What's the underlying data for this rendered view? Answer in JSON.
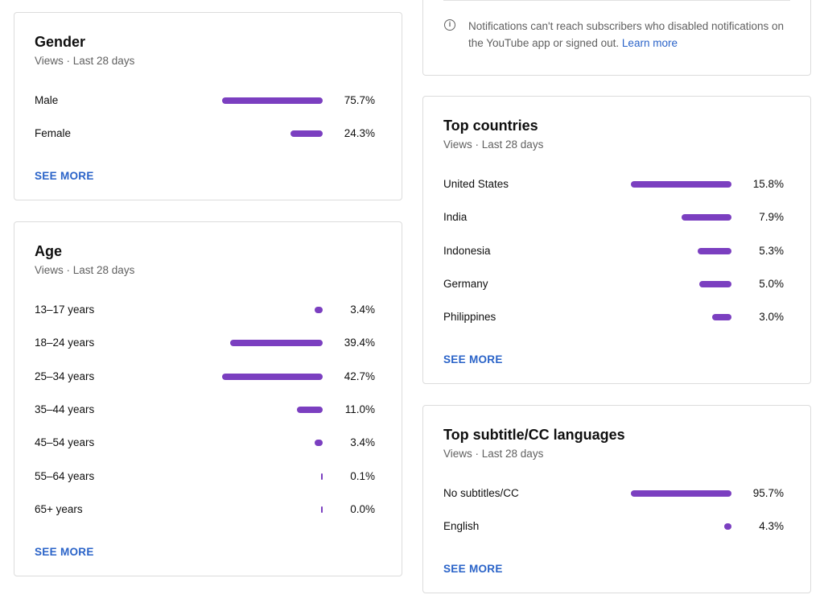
{
  "gender": {
    "title": "Gender",
    "subtitle": "Views · Last 28 days",
    "rows": [
      {
        "label": "Male",
        "value": "75.7%",
        "bar_fraction": 0.757
      },
      {
        "label": "Female",
        "value": "24.3%",
        "bar_fraction": 0.243
      }
    ],
    "see_more": "SEE MORE"
  },
  "age": {
    "title": "Age",
    "subtitle": "Views · Last 28 days",
    "rows": [
      {
        "label": "13–17 years",
        "value": "3.4%",
        "bar_fraction": 0.034
      },
      {
        "label": "18–24 years",
        "value": "39.4%",
        "bar_fraction": 0.394
      },
      {
        "label": "25–34 years",
        "value": "42.7%",
        "bar_fraction": 0.427
      },
      {
        "label": "35–44 years",
        "value": "11.0%",
        "bar_fraction": 0.11
      },
      {
        "label": "45–54 years",
        "value": "3.4%",
        "bar_fraction": 0.034
      },
      {
        "label": "55–64 years",
        "value": "0.1%",
        "bar_fraction": 0.001
      },
      {
        "label": "65+ years",
        "value": "0.0%",
        "bar_fraction": 0.0
      }
    ],
    "see_more": "SEE MORE"
  },
  "notice": {
    "icon": "info-icon",
    "text": "Notifications can't reach subscribers who disabled notifications on the YouTube app or signed out.",
    "link": "Learn more"
  },
  "countries": {
    "title": "Top countries",
    "subtitle": "Views · Last 28 days",
    "rows": [
      {
        "label": "United States",
        "value": "15.8%",
        "bar_fraction": 0.158
      },
      {
        "label": "India",
        "value": "7.9%",
        "bar_fraction": 0.079
      },
      {
        "label": "Indonesia",
        "value": "5.3%",
        "bar_fraction": 0.053
      },
      {
        "label": "Germany",
        "value": "5.0%",
        "bar_fraction": 0.05
      },
      {
        "label": "Philippines",
        "value": "3.0%",
        "bar_fraction": 0.03
      }
    ],
    "see_more": "SEE MORE"
  },
  "subtitles": {
    "title": "Top subtitle/CC languages",
    "subtitle": "Views · Last 28 days",
    "rows": [
      {
        "label": "No subtitles/CC",
        "value": "95.7%",
        "bar_fraction": 0.957
      },
      {
        "label": "English",
        "value": "4.3%",
        "bar_fraction": 0.043
      }
    ],
    "see_more": "SEE MORE"
  },
  "colors": {
    "bar": "#7b3fc0",
    "link": "#2a63c8",
    "secondary_text": "#606060",
    "card_border": "#dcdcdc"
  }
}
